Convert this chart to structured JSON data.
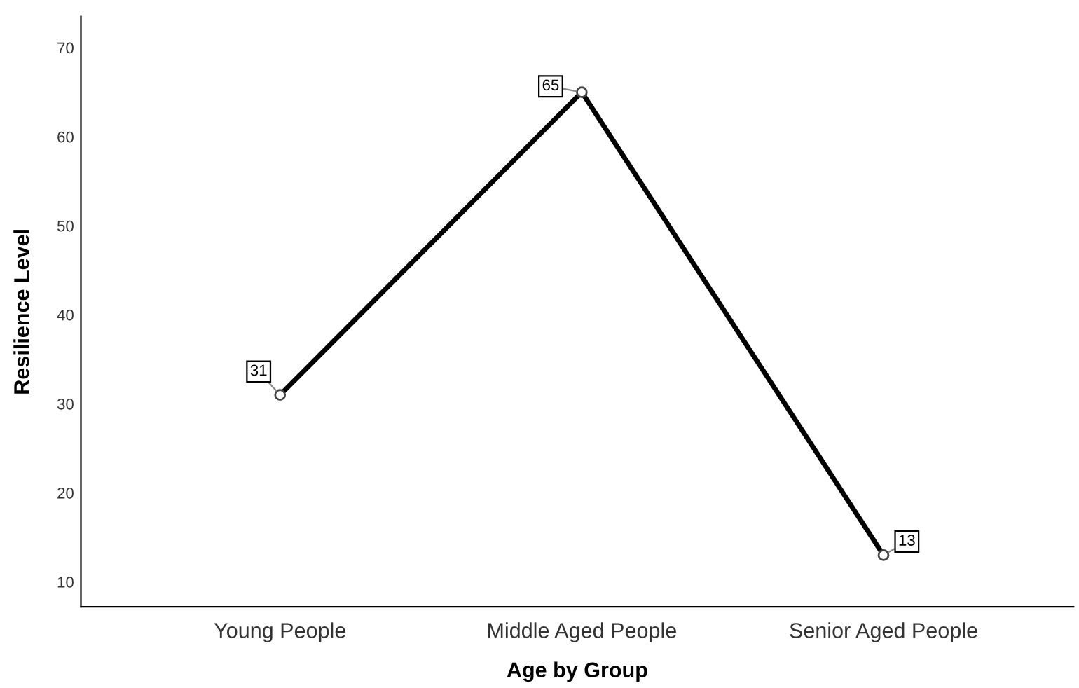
{
  "chart_data": {
    "type": "line",
    "xlabel": "Age by Group",
    "ylabel": "Resilience Level",
    "categories": [
      "Young People",
      "Middle Aged People",
      "Senior Aged People"
    ],
    "series": [
      {
        "color": "#000000",
        "values": [
          31,
          65,
          13
        ]
      }
    ],
    "ylim": [
      7.2,
      73.5
    ],
    "yticks": [
      10,
      20,
      30,
      40,
      50,
      60,
      70
    ],
    "marker": "circle",
    "line_style": "solid",
    "data_labels": true,
    "grid": false,
    "legend": false
  }
}
